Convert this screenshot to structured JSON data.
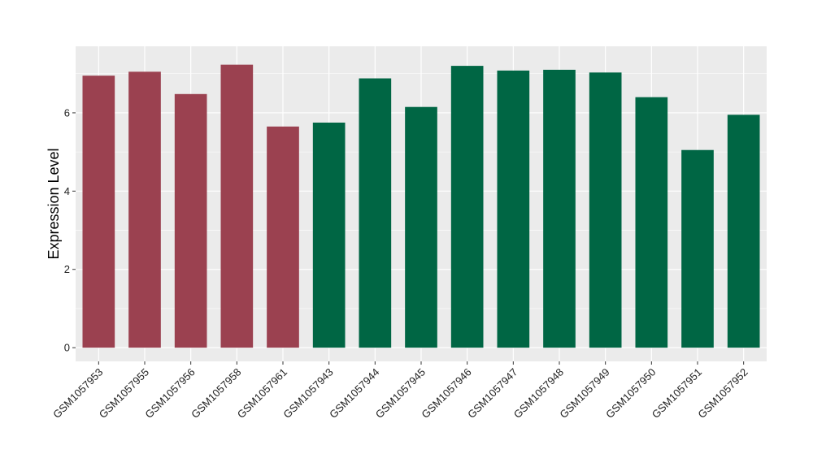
{
  "chart_data": {
    "type": "bar",
    "title": "",
    "xlabel": "",
    "ylabel": "Expression Level",
    "ylim": [
      -0.35,
      7.7
    ],
    "yticks": [
      0,
      2,
      4,
      6
    ],
    "grid": true,
    "categories": [
      "GSM1057953",
      "GSM1057955",
      "GSM1057956",
      "GSM1057958",
      "GSM1057961",
      "GSM1057943",
      "GSM1057944",
      "GSM1057945",
      "GSM1057946",
      "GSM1057947",
      "GSM1057948",
      "GSM1057949",
      "GSM1057950",
      "GSM1057951",
      "GSM1057952"
    ],
    "values": [
      6.95,
      7.05,
      6.48,
      7.23,
      5.65,
      5.75,
      6.88,
      6.15,
      7.2,
      7.08,
      7.1,
      7.03,
      6.4,
      5.05,
      5.95
    ],
    "groups": [
      "a",
      "a",
      "a",
      "a",
      "a",
      "b",
      "b",
      "b",
      "b",
      "b",
      "b",
      "b",
      "b",
      "b",
      "b"
    ],
    "group_colors": {
      "a": "#9b4150",
      "b": "#006644"
    },
    "panel_color": "#ebebeb",
    "grid_color": "#ffffff"
  }
}
